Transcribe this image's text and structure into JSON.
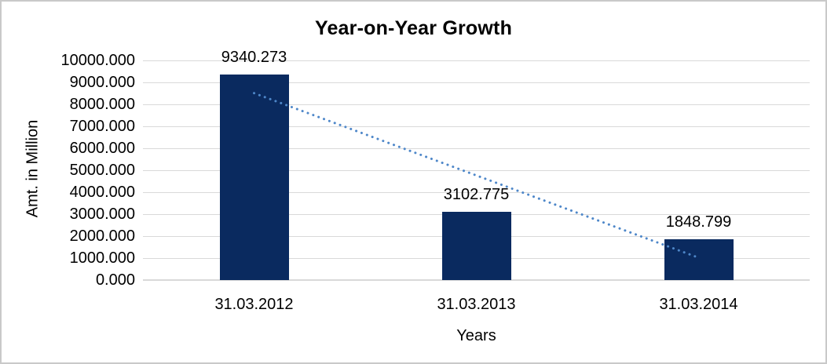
{
  "chart_data": {
    "type": "bar",
    "title": "Year-on-Year Growth",
    "xlabel": "Years",
    "ylabel": "Amt. in Million",
    "categories": [
      "31.03.2012",
      "31.03.2013",
      "31.03.2014"
    ],
    "values": [
      9340.273,
      3102.775,
      1848.799
    ],
    "data_labels": [
      "9340.273",
      "3102.775",
      "1848.799"
    ],
    "ylim": [
      0,
      10000
    ],
    "yticks": {
      "values": [
        0,
        1000,
        2000,
        3000,
        4000,
        5000,
        6000,
        7000,
        8000,
        9000,
        10000
      ],
      "labels": [
        "0.000",
        "1000.000",
        "2000.000",
        "3000.000",
        "4000.000",
        "5000.000",
        "6000.000",
        "7000.000",
        "8000.000",
        "9000.000",
        "10000.000"
      ]
    },
    "grid": true,
    "legend": false,
    "trendline": {
      "type": "linear",
      "style": "dotted"
    },
    "colors": {
      "bar": "#0A2A5F",
      "trendline": "#4E87C9",
      "gridline": "#D9D9D9",
      "axis_line": "#D9D9D9",
      "text": "#000000",
      "border": "#C9C9C9",
      "background": "#FFFFFF"
    }
  }
}
